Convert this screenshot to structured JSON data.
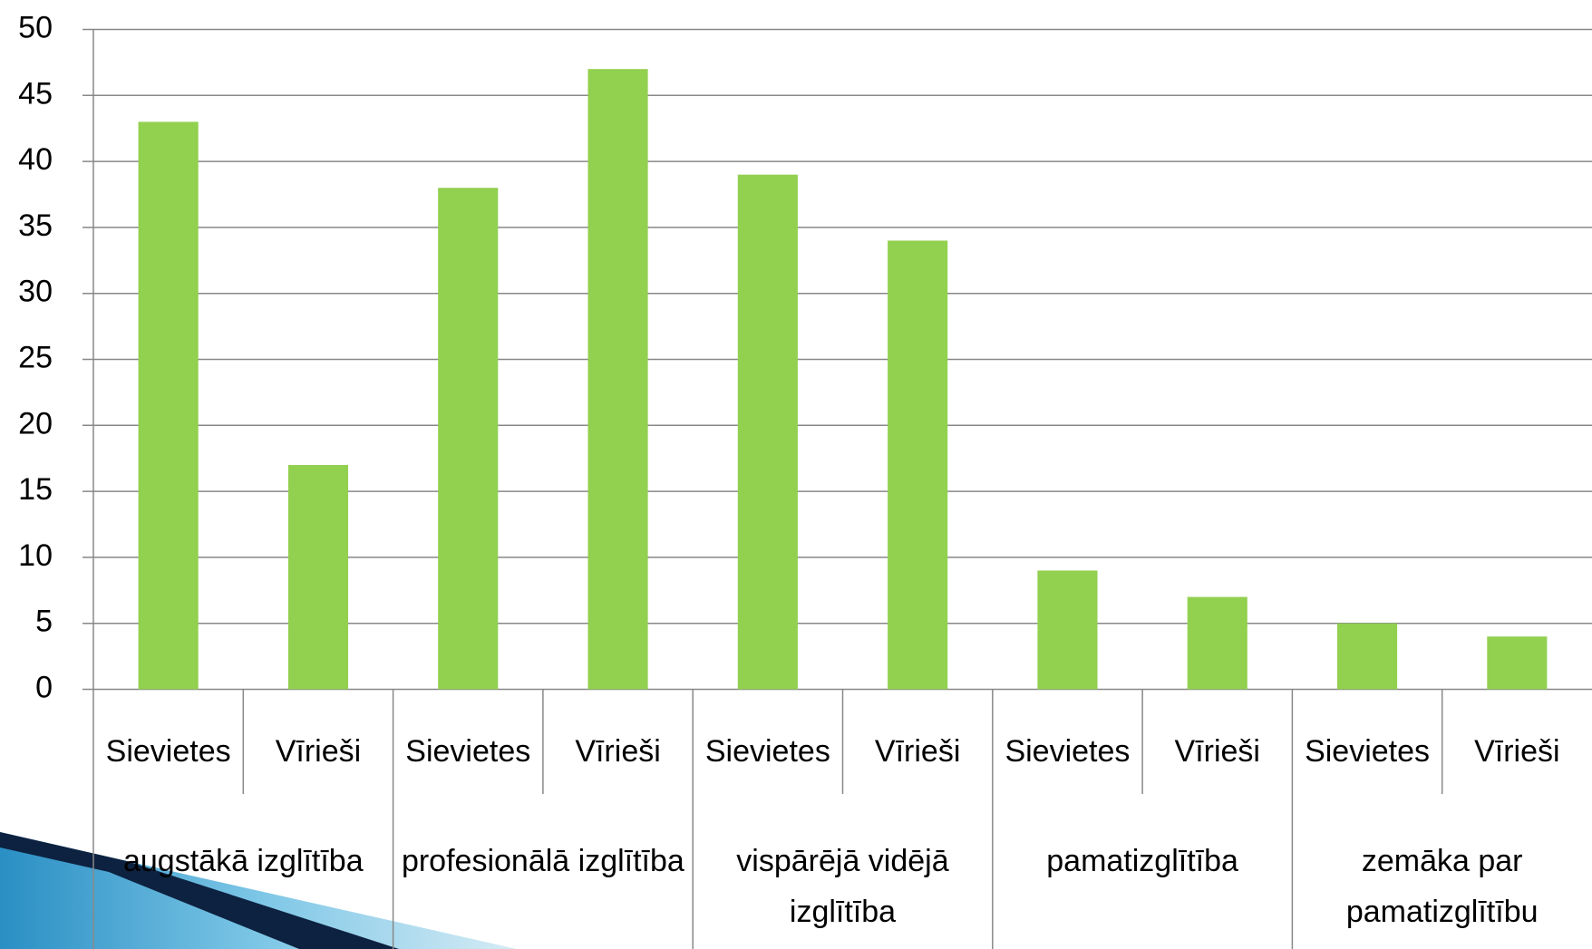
{
  "chart_data": {
    "type": "bar",
    "color": "#92d050",
    "ylim": [
      0,
      50
    ],
    "yticks": [
      0,
      5,
      10,
      15,
      20,
      25,
      30,
      35,
      40,
      45,
      50
    ],
    "grid": true,
    "groups": [
      {
        "name": "augstākā izglītība",
        "categories": [
          "Sievietes",
          "Vīrieši"
        ],
        "values": [
          43,
          17
        ]
      },
      {
        "name": "profesionālā izglītība",
        "categories": [
          "Sievietes",
          "Vīrieši"
        ],
        "values": [
          38,
          47
        ]
      },
      {
        "name": "vispārējā vidējā izglītība",
        "categories": [
          "Sievietes",
          "Vīrieši"
        ],
        "values": [
          39,
          34
        ]
      },
      {
        "name": "pamatizglītība",
        "categories": [
          "Sievietes",
          "Vīrieši"
        ],
        "values": [
          9,
          7
        ]
      },
      {
        "name": "zemāka par pamatizglītību",
        "categories": [
          "Sievietes",
          "Vīrieši"
        ],
        "values": [
          5,
          4
        ]
      }
    ]
  }
}
